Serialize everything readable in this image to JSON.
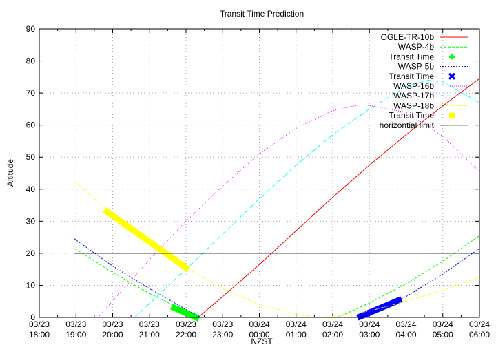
{
  "chart_data": {
    "type": "line",
    "title": "Transit Time Prediction",
    "xlabel": "NZST",
    "ylabel": "Altitude",
    "xlim": [
      0,
      12
    ],
    "ylim": [
      0,
      90
    ],
    "grid": true,
    "legend_placement": "top-right",
    "x_ticks": [
      [
        "03/23",
        "18:00"
      ],
      [
        "03/23",
        "19:00"
      ],
      [
        "03/23",
        "20:00"
      ],
      [
        "03/23",
        "21:00"
      ],
      [
        "03/23",
        "22:00"
      ],
      [
        "03/23",
        "23:00"
      ],
      [
        "03/24",
        "00:00"
      ],
      [
        "03/24",
        "01:00"
      ],
      [
        "03/24",
        "02:00"
      ],
      [
        "03/24",
        "03:00"
      ],
      [
        "03/24",
        "04:00"
      ],
      [
        "03/24",
        "05:00"
      ],
      [
        "03/24",
        "06:00"
      ]
    ],
    "x_unit_note": "x values are hours after 03/23 18:00",
    "y_ticks": [
      0,
      10,
      20,
      30,
      40,
      50,
      60,
      70,
      80,
      90
    ],
    "series": [
      {
        "name": "OGLE-TR-10b",
        "color": "#ff0000",
        "dash": "",
        "segments": [
          [
            [
              4.33,
              0
            ],
            [
              5,
              6.5
            ],
            [
              6,
              16.5
            ],
            [
              7,
              27
            ],
            [
              8,
              37.5
            ],
            [
              9,
              47.5
            ],
            [
              10,
              57
            ],
            [
              11,
              66
            ],
            [
              12,
              74.5
            ]
          ]
        ]
      },
      {
        "name": "WASP-4b",
        "color": "#00ff00",
        "dash": "4,2",
        "segments": [
          [
            [
              0.96,
              21.5
            ],
            [
              2,
              14
            ],
            [
              3,
              7.5
            ],
            [
              4,
              1.8
            ],
            [
              4.28,
              0
            ]
          ],
          [
            [
              8.13,
              0
            ],
            [
              9,
              4.5
            ],
            [
              10,
              10.5
            ],
            [
              11,
              17.5
            ],
            [
              12,
              25.5
            ]
          ]
        ]
      },
      {
        "name": "Transit Time",
        "color": "#00ff00",
        "marker": "plus",
        "segments": [
          [
            [
              3.68,
              3
            ],
            [
              4.28,
              0
            ]
          ]
        ]
      },
      {
        "name": "WASP-5b",
        "color": "#0000ff",
        "dash": "2,2",
        "segments": [
          [
            [
              0.96,
              24.5
            ],
            [
              2,
              16
            ],
            [
              3,
              9
            ],
            [
              4,
              2.5
            ],
            [
              4.4,
              0
            ]
          ],
          [
            [
              8.7,
              0
            ],
            [
              9,
              1.5
            ],
            [
              10,
              6.5
            ],
            [
              11,
              13.5
            ],
            [
              12,
              21.5
            ]
          ]
        ]
      },
      {
        "name": "Transit Time",
        "color": "#0000ff",
        "marker": "cross",
        "segments": [
          [
            [
              8.75,
              0.3
            ],
            [
              9.8,
              5.3
            ]
          ]
        ]
      },
      {
        "name": "WASP-16b",
        "color": "#ff00ff",
        "dash": "1,2",
        "segments": [
          [
            [
              1.6,
              0
            ],
            [
              3,
              18
            ],
            [
              4,
              30
            ],
            [
              5,
              41
            ],
            [
              6,
              51
            ],
            [
              7,
              59
            ],
            [
              8,
              64.5
            ],
            [
              8.8,
              66.5
            ],
            [
              10,
              64
            ],
            [
              11,
              56.5
            ],
            [
              12,
              45.5
            ]
          ]
        ]
      },
      {
        "name": "WASP-17b",
        "color": "#00ffff",
        "dash": "6,2,1,2",
        "segments": [
          [
            [
              2.6,
              0
            ],
            [
              4,
              15
            ],
            [
              5,
              26
            ],
            [
              6,
              37
            ],
            [
              7,
              47.5
            ],
            [
              8,
              57
            ],
            [
              9,
              65
            ],
            [
              10,
              72
            ],
            [
              10.6,
              74
            ],
            [
              11,
              73.5
            ],
            [
              12,
              67
            ]
          ]
        ]
      },
      {
        "name": "WASP-18b",
        "color": "#ffff00",
        "dash": "4,2,1,2",
        "segments": [
          [
            [
              0.96,
              42.5
            ],
            [
              2,
              32
            ],
            [
              3,
              23.5
            ],
            [
              4,
              15.5
            ],
            [
              5,
              9
            ],
            [
              6,
              4
            ],
            [
              7,
              1
            ],
            [
              7.5,
              0
            ],
            [
              8,
              0.3
            ],
            [
              9,
              2
            ],
            [
              10,
              5
            ],
            [
              11,
              8.5
            ],
            [
              12,
              12.5
            ]
          ]
        ]
      },
      {
        "name": "Transit Time",
        "color": "#ffff00",
        "marker": "square",
        "segments": [
          [
            [
              1.85,
              33
            ],
            [
              4.0,
              15.5
            ]
          ]
        ]
      },
      {
        "name": "horizontial limit",
        "color": "#000000",
        "dash": "",
        "segments": [
          [
            [
              0.96,
              20
            ],
            [
              12,
              20
            ]
          ]
        ]
      }
    ]
  }
}
